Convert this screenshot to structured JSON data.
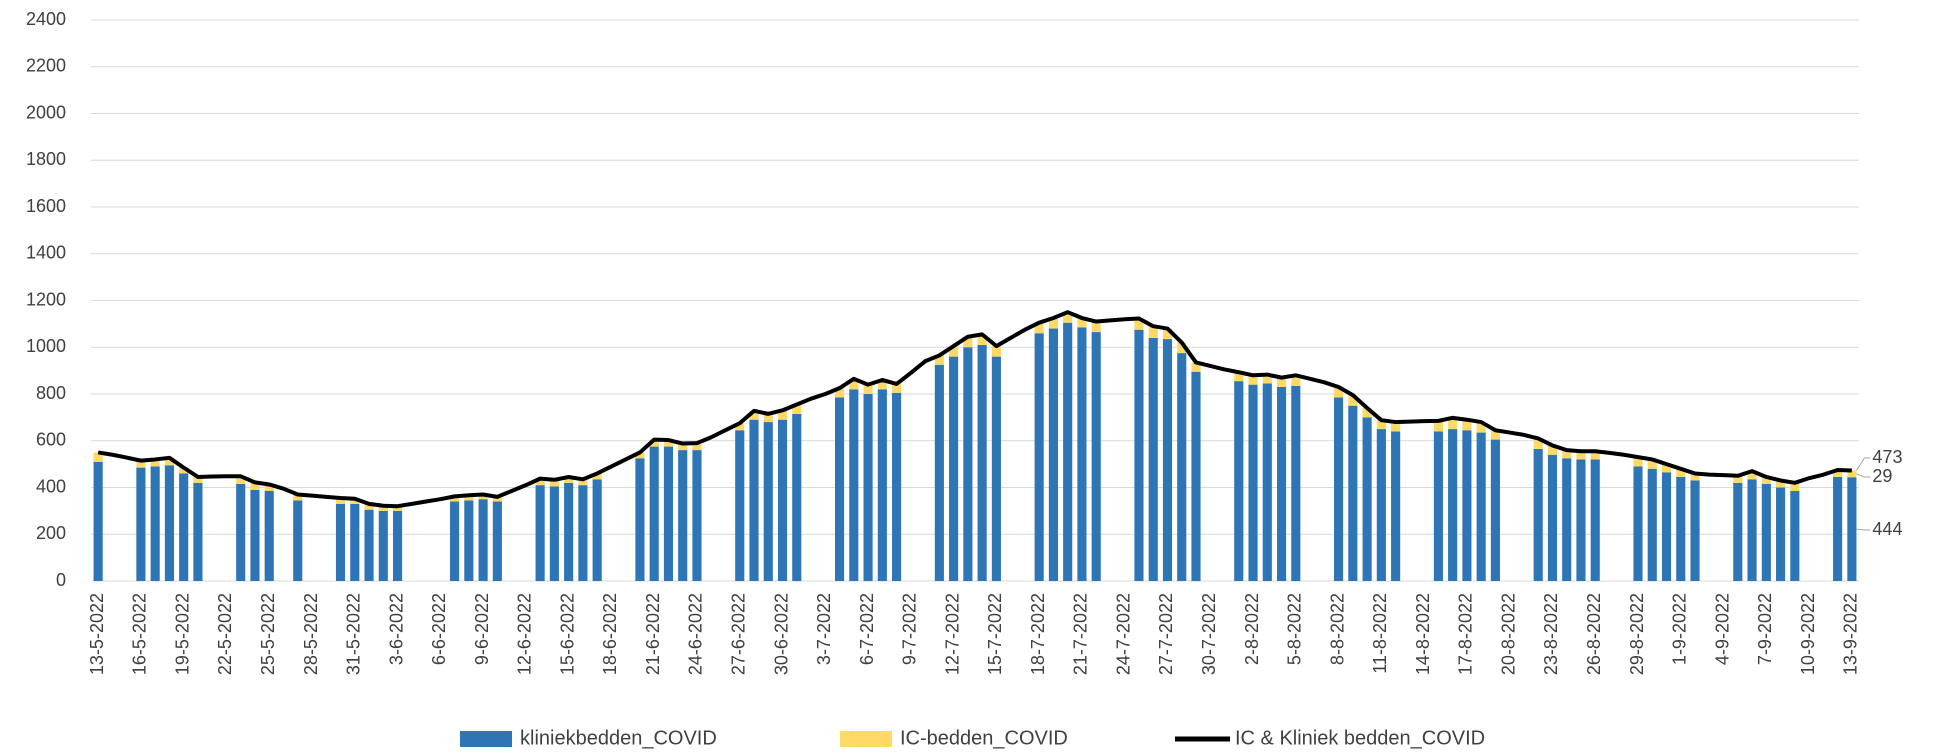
{
  "chart_data": {
    "type": "bar",
    "stacked": true,
    "grid": true,
    "categories": [
      "13-5-2022",
      null,
      null,
      "16-5-2022",
      null,
      null,
      "19-5-2022",
      null,
      null,
      "22-5-2022",
      null,
      null,
      "25-5-2022",
      null,
      null,
      "28-5-2022",
      null,
      null,
      "31-5-2022",
      null,
      null,
      "3-6-2022",
      null,
      null,
      "6-6-2022",
      null,
      null,
      "9-6-2022",
      null,
      null,
      "12-6-2022",
      null,
      null,
      "15-6-2022",
      null,
      null,
      "18-6-2022",
      null,
      null,
      "21-6-2022",
      null,
      null,
      "24-6-2022",
      null,
      null,
      "27-6-2022",
      null,
      null,
      "30-6-2022",
      null,
      null,
      "3-7-2022",
      null,
      null,
      "6-7-2022",
      null,
      null,
      "9-7-2022",
      null,
      null,
      "12-7-2022",
      null,
      null,
      "15-7-2022",
      null,
      null,
      "18-7-2022",
      null,
      null,
      "21-7-2022",
      null,
      null,
      "24-7-2022",
      null,
      null,
      "27-7-2022",
      null,
      null,
      "30-7-2022",
      null,
      null,
      "2-8-2022",
      null,
      null,
      "5-8-2022",
      null,
      null,
      "8-8-2022",
      null,
      null,
      "11-8-2022",
      null,
      null,
      "14-8-2022",
      null,
      null,
      "17-8-2022",
      null,
      null,
      "20-8-2022",
      null,
      null,
      "23-8-2022",
      null,
      null,
      "26-8-2022",
      null,
      null,
      "29-8-2022",
      null,
      null,
      "1-9-2022",
      null,
      null,
      "4-9-2022",
      null,
      null,
      "7-9-2022",
      null,
      null,
      "10-9-2022",
      null,
      null,
      "13-9-2022"
    ],
    "series": [
      {
        "name": "kliniekbedden_COVID",
        "type": "bar",
        "color": "#2e75b6",
        "values": [
          510,
          null,
          null,
          485,
          490,
          495,
          460,
          420,
          null,
          null,
          415,
          390,
          385,
          null,
          345,
          null,
          null,
          330,
          330,
          305,
          300,
          300,
          null,
          null,
          null,
          340,
          345,
          350,
          340,
          null,
          null,
          410,
          405,
          420,
          410,
          435,
          null,
          null,
          525,
          575,
          575,
          560,
          560,
          null,
          null,
          645,
          690,
          680,
          690,
          715,
          null,
          null,
          785,
          820,
          800,
          820,
          805,
          null,
          null,
          925,
          960,
          1000,
          1010,
          960,
          null,
          null,
          1060,
          1080,
          1105,
          1085,
          1065,
          null,
          null,
          1075,
          1040,
          1035,
          975,
          895,
          null,
          null,
          855,
          840,
          845,
          830,
          835,
          null,
          null,
          785,
          750,
          700,
          650,
          640,
          null,
          null,
          640,
          650,
          645,
          635,
          605,
          null,
          null,
          565,
          540,
          525,
          520,
          520,
          null,
          null,
          490,
          480,
          465,
          445,
          430,
          null,
          null,
          420,
          435,
          415,
          400,
          385,
          null,
          null,
          445,
          444
        ]
      },
      {
        "name": "IC-bedden_COVID",
        "type": "bar",
        "color": "#ffd966",
        "values": [
          40,
          null,
          null,
          30,
          30,
          32,
          25,
          25,
          null,
          null,
          33,
          32,
          28,
          null,
          25,
          null,
          null,
          25,
          22,
          25,
          22,
          20,
          null,
          null,
          null,
          22,
          22,
          20,
          20,
          null,
          null,
          28,
          28,
          25,
          25,
          25,
          null,
          null,
          25,
          30,
          28,
          28,
          30,
          null,
          null,
          30,
          38,
          35,
          40,
          40,
          null,
          null,
          40,
          45,
          40,
          40,
          38,
          null,
          null,
          40,
          45,
          45,
          45,
          45,
          null,
          null,
          45,
          45,
          45,
          40,
          45,
          null,
          null,
          48,
          50,
          45,
          45,
          40,
          null,
          null,
          38,
          40,
          38,
          40,
          45,
          null,
          null,
          45,
          45,
          40,
          38,
          40,
          null,
          null,
          45,
          48,
          45,
          45,
          40,
          null,
          null,
          45,
          40,
          35,
          35,
          35,
          null,
          null,
          40,
          40,
          35,
          35,
          30,
          null,
          null,
          30,
          35,
          30,
          30,
          35,
          null,
          null,
          30,
          29
        ]
      },
      {
        "name": "IC & Kliniek bedden_COVID",
        "type": "line",
        "color": "#000000",
        "values": [
          550,
          540,
          528,
          515,
          520,
          527,
          485,
          445,
          447,
          448,
          448,
          422,
          413,
          395,
          370,
          365,
          360,
          355,
          352,
          330,
          322,
          320,
          330,
          340,
          350,
          362,
          367,
          370,
          360,
          385,
          410,
          438,
          433,
          445,
          435,
          460,
          490,
          520,
          550,
          605,
          603,
          588,
          590,
          615,
          645,
          675,
          728,
          715,
          730,
          755,
          780,
          800,
          825,
          865,
          840,
          860,
          843,
          890,
          940,
          965,
          1005,
          1045,
          1055,
          1005,
          1040,
          1075,
          1105,
          1125,
          1150,
          1125,
          1110,
          1115,
          1120,
          1123,
          1090,
          1080,
          1020,
          935,
          920,
          905,
          893,
          880,
          883,
          870,
          880,
          865,
          850,
          830,
          795,
          740,
          688,
          680,
          682,
          684,
          685,
          698,
          690,
          680,
          645,
          635,
          625,
          610,
          580,
          560,
          555,
          555,
          548,
          540,
          530,
          520,
          500,
          480,
          460,
          455,
          453,
          450,
          470,
          445,
          430,
          420,
          440,
          455,
          475,
          473
        ]
      }
    ],
    "ylim": [
      0,
      2400
    ],
    "yticks": [
      0,
      200,
      400,
      600,
      800,
      1000,
      1200,
      1400,
      1600,
      1800,
      2000,
      2200,
      2400
    ]
  }
}
